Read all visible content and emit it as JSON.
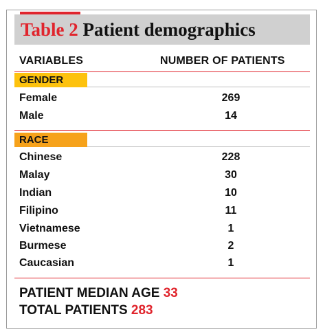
{
  "title": {
    "number": "Table 2",
    "text": "Patient demographics"
  },
  "headers": {
    "variables": "VARIABLES",
    "patients": "NUMBER OF PATIENTS"
  },
  "gender": {
    "label": "GENDER",
    "rows": [
      {
        "label": "Female",
        "value": "269"
      },
      {
        "label": "Male",
        "value": "14"
      }
    ]
  },
  "race": {
    "label": "RACE",
    "rows": [
      {
        "label": "Chinese",
        "value": "228"
      },
      {
        "label": "Malay",
        "value": "30"
      },
      {
        "label": "Indian",
        "value": "10"
      },
      {
        "label": "Filipino",
        "value": "11"
      },
      {
        "label": "Vietnamese",
        "value": "1"
      },
      {
        "label": "Burmese",
        "value": "2"
      },
      {
        "label": "Caucasian",
        "value": "1"
      }
    ]
  },
  "summary": {
    "median_age_label": "PATIENT MEDIAN AGE",
    "median_age_value": "33",
    "total_label": "TOTAL PATIENTS",
    "total_value": "283"
  },
  "colors": {
    "accent": "#e0252d",
    "gender_band": "#fdc20e",
    "race_band": "#f6a21b",
    "title_bar": "#d0d0d0"
  }
}
